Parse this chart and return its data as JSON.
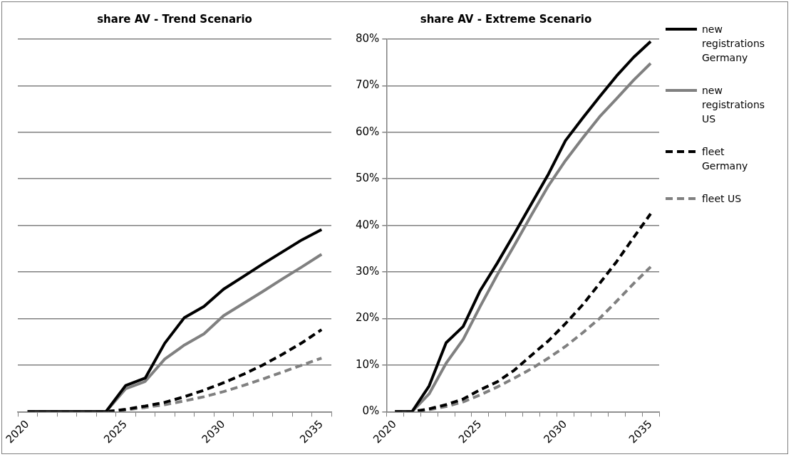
{
  "chart_data": [
    {
      "type": "line",
      "title": "share AV - Trend Scenario",
      "categories": [
        "2020",
        null,
        null,
        null,
        null,
        "2025",
        null,
        null,
        null,
        null,
        "2030",
        null,
        null,
        null,
        null,
        "2035"
      ],
      "ylim": [
        0,
        80
      ],
      "yticks": [
        {
          "value": 0,
          "label": null
        },
        {
          "value": 10,
          "label": null
        },
        {
          "value": 20,
          "label": null
        },
        {
          "value": 30,
          "label": null
        },
        {
          "value": 40,
          "label": null
        },
        {
          "value": 50,
          "label": null
        },
        {
          "value": 60,
          "label": null
        },
        {
          "value": 70,
          "label": null
        },
        {
          "value": 80,
          "label": null
        }
      ],
      "grid": "y",
      "tick_labels": "x",
      "marker": "none",
      "series": [
        {
          "color": "#000000",
          "line_style": "solid",
          "values": [
            0,
            0,
            0,
            0,
            0,
            5.6,
            7.2,
            14.7,
            20.2,
            22.6,
            26.3,
            29,
            31.7,
            34.3,
            36.9,
            39.1
          ]
        },
        {
          "color": "#808080",
          "line_style": "solid",
          "values": [
            0,
            0,
            0,
            0,
            0,
            4.9,
            6.5,
            11.3,
            14.3,
            16.7,
            20.6,
            23.2,
            25.8,
            28.5,
            31.1,
            33.8
          ]
        },
        {
          "color": "#000000",
          "line_style": "dashed",
          "values": [
            0,
            0,
            0,
            0,
            0,
            0.5,
            1.2,
            2,
            3.2,
            4.6,
            6.2,
            8,
            10,
            12.3,
            14.8,
            17.6
          ]
        },
        {
          "color": "#808080",
          "line_style": "dashed",
          "values": [
            0,
            0,
            0,
            0,
            0,
            0.4,
            0.9,
            1.5,
            2.3,
            3.2,
            4.3,
            5.6,
            7,
            8.5,
            10,
            11.5
          ]
        }
      ]
    },
    {
      "type": "line",
      "title": "share AV - Extreme Scenario",
      "categories": [
        "2020",
        null,
        null,
        null,
        null,
        "2025",
        null,
        null,
        null,
        null,
        "2030",
        null,
        null,
        null,
        null,
        "2035"
      ],
      "ylim": [
        0,
        80
      ],
      "yticks": [
        {
          "value": 0,
          "label": "0%"
        },
        {
          "value": 10,
          "label": "10%"
        },
        {
          "value": 20,
          "label": "20%"
        },
        {
          "value": 30,
          "label": "30%"
        },
        {
          "value": 40,
          "label": "40%"
        },
        {
          "value": 50,
          "label": "50%"
        },
        {
          "value": 60,
          "label": "60%"
        },
        {
          "value": 70,
          "label": "70%"
        },
        {
          "value": 80,
          "label": "80%"
        }
      ],
      "grid": "y",
      "legend": "right",
      "marker": "none",
      "series": [
        {
          "name": "new registrations Germany",
          "color": "#000000",
          "line_style": "solid",
          "values": [
            0,
            0,
            5.5,
            14.8,
            18.3,
            26,
            31.9,
            38.2,
            44.6,
            51,
            58.2,
            63,
            67.6,
            72.1,
            76.1,
            79.5
          ]
        },
        {
          "name": "new registrations US",
          "color": "#808080",
          "line_style": "solid",
          "values": [
            0,
            0,
            3.8,
            10.4,
            15.5,
            22.6,
            29.4,
            35.7,
            42.2,
            48.5,
            53.9,
            58.7,
            63.3,
            67.2,
            71.2,
            74.8
          ]
        },
        {
          "name": "fleet Germany",
          "color": "#000000",
          "line_style": "dashed",
          "values": [
            0,
            0,
            0.6,
            1.5,
            2.7,
            4.7,
            6.4,
            8.9,
            12.1,
            15.2,
            18.9,
            22.9,
            27.5,
            32.2,
            37.4,
            42.5
          ]
        },
        {
          "name": "fleet US",
          "color": "#808080",
          "line_style": "dashed",
          "values": [
            0,
            0,
            0.4,
            1.1,
            2.1,
            3.6,
            5.3,
            7.2,
            9.2,
            11.5,
            14,
            16.9,
            20,
            23.7,
            27.5,
            31.1
          ]
        }
      ]
    }
  ]
}
